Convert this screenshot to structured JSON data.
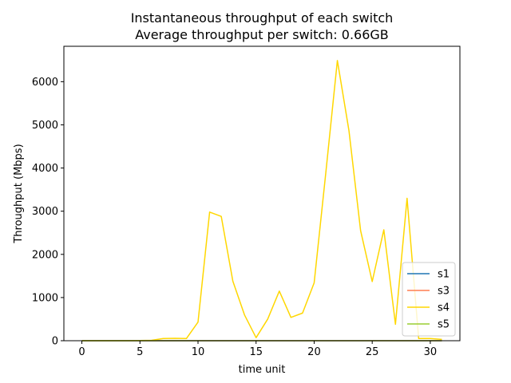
{
  "chart_data": {
    "type": "line",
    "title": "Instantaneous throughput of each switch",
    "subtitle": "Average throughput per switch: 0.66GB",
    "xlabel": "time unit",
    "ylabel": "Throughput (Mbps)",
    "xlim": [
      -1.55,
      32.55
    ],
    "ylim": [
      0,
      6820
    ],
    "xticks": [
      0,
      5,
      10,
      15,
      20,
      25,
      30
    ],
    "yticks": [
      0,
      1000,
      2000,
      3000,
      4000,
      5000,
      6000
    ],
    "grid": false,
    "legend_position": "lower right",
    "x": [
      0,
      1,
      2,
      3,
      4,
      5,
      6,
      7,
      8,
      9,
      10,
      11,
      12,
      13,
      14,
      15,
      16,
      17,
      18,
      19,
      20,
      21,
      22,
      23,
      24,
      25,
      26,
      27,
      28,
      29,
      30,
      31
    ],
    "series": [
      {
        "name": "s1",
        "color": "#1f77b4",
        "values": [
          0,
          0,
          0,
          0,
          0,
          0,
          0,
          0,
          0,
          0,
          0,
          0,
          0,
          0,
          0,
          0,
          0,
          0,
          0,
          0,
          0,
          0,
          0,
          0,
          0,
          0,
          0,
          0,
          0,
          0,
          0,
          0
        ]
      },
      {
        "name": "s3",
        "color": "#ff7f50",
        "values": [
          0,
          0,
          0,
          0,
          0,
          0,
          0,
          0,
          0,
          0,
          0,
          0,
          0,
          0,
          0,
          0,
          0,
          0,
          0,
          0,
          0,
          0,
          0,
          0,
          0,
          0,
          0,
          0,
          0,
          0,
          0,
          0
        ]
      },
      {
        "name": "s4",
        "color": "#ffd700",
        "values": [
          0,
          0,
          0,
          0,
          0,
          5,
          10,
          50,
          55,
          50,
          430,
          2980,
          2880,
          1380,
          600,
          70,
          500,
          1150,
          540,
          640,
          1340,
          3880,
          6490,
          4860,
          2550,
          1370,
          2570,
          380,
          3300,
          50,
          50,
          30
        ]
      },
      {
        "name": "s5",
        "color": "#9acd32",
        "values": [
          0,
          0,
          0,
          0,
          0,
          0,
          0,
          0,
          0,
          0,
          0,
          0,
          0,
          0,
          0,
          0,
          0,
          0,
          0,
          0,
          0,
          0,
          0,
          0,
          0,
          0,
          0,
          0,
          0,
          0,
          0,
          0
        ]
      }
    ]
  }
}
